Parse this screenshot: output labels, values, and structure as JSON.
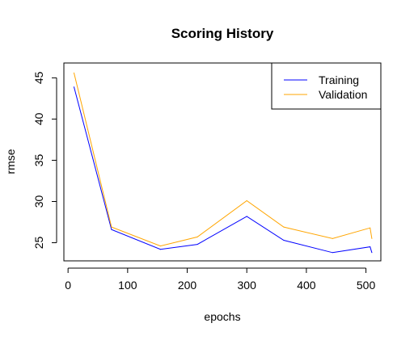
{
  "chart_data": {
    "type": "line",
    "title": "Scoring History",
    "xlabel": "epochs",
    "ylabel": "rmse",
    "xlim": [
      -7,
      525
    ],
    "ylim": [
      22.8,
      46.8
    ],
    "x_ticks": [
      0,
      100,
      200,
      300,
      400,
      500
    ],
    "y_ticks": [
      25,
      30,
      35,
      40,
      45
    ],
    "grid": false,
    "legend_position": "top-right",
    "series": [
      {
        "name": "Training",
        "color": "#0000ff",
        "x": [
          10,
          73,
          155,
          217,
          300,
          362,
          444,
          507,
          510
        ],
        "y": [
          43.9,
          26.6,
          24.2,
          24.8,
          28.2,
          25.3,
          23.8,
          24.5,
          23.8
        ]
      },
      {
        "name": "Validation",
        "color": "#ffa500",
        "x": [
          10,
          73,
          155,
          217,
          300,
          362,
          444,
          507,
          510
        ],
        "y": [
          45.6,
          26.9,
          24.6,
          25.7,
          30.1,
          26.9,
          25.5,
          26.8,
          25.5
        ]
      }
    ]
  }
}
